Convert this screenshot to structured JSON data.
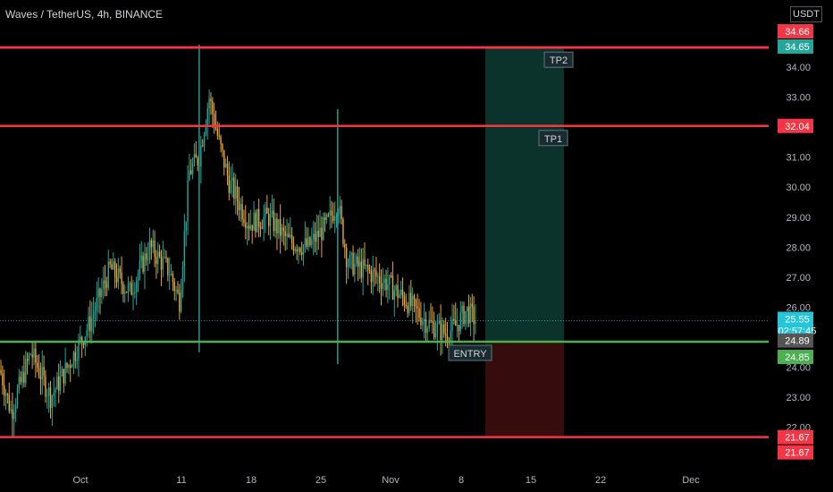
{
  "title": "Waves / TetherUS, 4h, BINANCE",
  "currency_label": "USDT",
  "colors": {
    "background": "#000000",
    "candle_up": "#26a69a",
    "candle_down": "#e8a33d",
    "level_red": "#f23645",
    "level_green": "#4caf50",
    "target_zone": "#0d3b33",
    "stop_zone": "#3d0d0d",
    "last_price": "#26c6da"
  },
  "chart_data": {
    "type": "candlestick",
    "symbol": "Waves / TetherUS",
    "interval": "4h",
    "exchange": "BINANCE",
    "y_axis": {
      "ticks": [
        "22.00",
        "23.00",
        "24.00",
        "25.00",
        "26.00",
        "27.00",
        "28.00",
        "29.00",
        "30.00",
        "31.00",
        "32.00",
        "33.00",
        "34.00"
      ],
      "range": [
        21.0,
        35.4
      ]
    },
    "x_axis": {
      "ticks": [
        "Oct",
        "11",
        "18",
        "25",
        "Nov",
        "8",
        "15",
        "22",
        "Dec"
      ]
    },
    "price_path": [
      [
        "Sep 22",
        25.0
      ],
      [
        "Sep 24",
        22.5
      ],
      [
        "Sep 26",
        24.5
      ],
      [
        "Sep 28",
        23.0
      ],
      [
        "Sep 30",
        24.2
      ],
      [
        "Oct 2",
        25.5
      ],
      [
        "Oct 4",
        27.3
      ],
      [
        "Oct 6",
        26.5
      ],
      [
        "Oct 8",
        28.0
      ],
      [
        "Oct 10",
        27.2
      ],
      [
        "Oct 11",
        26.2
      ],
      [
        "Oct 12",
        30.5
      ],
      [
        "Oct 13",
        31.0
      ],
      [
        "Oct 14",
        33.0
      ],
      [
        "Oct 15",
        31.5
      ],
      [
        "Oct 16",
        30.2
      ],
      [
        "Oct 18",
        28.8
      ],
      [
        "Oct 20",
        29.0
      ],
      [
        "Oct 22",
        28.2
      ],
      [
        "Oct 24",
        28.0
      ],
      [
        "Oct 26",
        28.8
      ],
      [
        "Oct 27",
        29.5
      ],
      [
        "Oct 28",
        27.5
      ],
      [
        "Oct 30",
        27.2
      ],
      [
        "Nov 1",
        26.8
      ],
      [
        "Nov 3",
        26.2
      ],
      [
        "Nov 5",
        25.5
      ],
      [
        "Nov 7",
        25.1
      ],
      [
        "Nov 8",
        25.4
      ],
      [
        "Nov 9",
        25.9
      ],
      [
        "Nov 10",
        25.55
      ]
    ],
    "spikes": [
      {
        "date": "Oct 13",
        "high": 34.75,
        "low": 24.5
      },
      {
        "date": "Oct 27",
        "high": 32.6,
        "low": 24.1
      }
    ],
    "levels": [
      {
        "label": "34.66",
        "value": 34.66,
        "color": "#f23645"
      },
      {
        "label": "34.65",
        "value": 34.65,
        "color": "#26a69a"
      },
      {
        "label": "32.04",
        "value": 32.04,
        "color": "#f23645"
      },
      {
        "label": "24.85",
        "value": 24.85,
        "color": "#4caf50"
      },
      {
        "label": "21.67",
        "value": 21.67,
        "color": "#f23645"
      }
    ],
    "last_price": {
      "value": 25.55,
      "label": "25.55",
      "countdown": "02:57:45"
    },
    "marker_price": {
      "value": 24.89,
      "label": "24.89"
    },
    "annotations": [
      {
        "text": "TP2",
        "value": 34.62
      },
      {
        "text": "TP1",
        "value": 32.01
      },
      {
        "text": "ENTRY",
        "value": 24.85
      }
    ],
    "position_zones": {
      "target": [
        24.85,
        34.65
      ],
      "stop": [
        21.67,
        24.85
      ]
    }
  }
}
